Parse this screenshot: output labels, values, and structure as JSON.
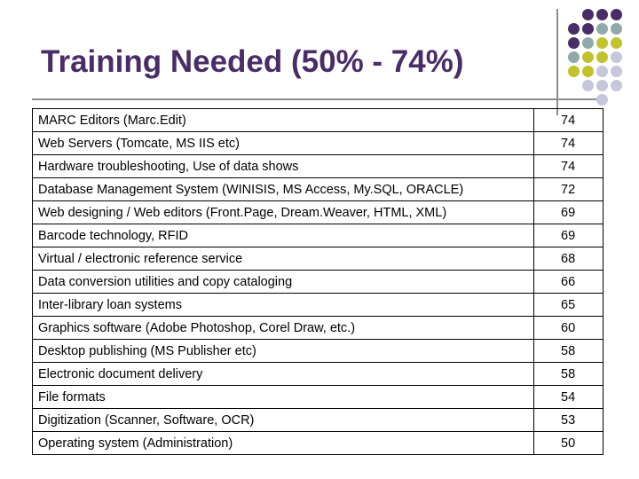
{
  "slide": {
    "title": "Training Needed (50% - 74%)",
    "colors": {
      "title": "#4a2c66",
      "dot_purple": "#4a2c66",
      "dot_teal": "#8faaa8",
      "dot_olive": "#c2c22e",
      "dot_lavender": "#c6c6dc"
    },
    "decoration_dots": [
      [
        "",
        "purple",
        "purple",
        "purple"
      ],
      [
        "purple",
        "purple",
        "teal",
        "teal"
      ],
      [
        "purple",
        "teal",
        "olive",
        "olive"
      ],
      [
        "teal",
        "olive",
        "olive",
        "lavender"
      ],
      [
        "olive",
        "olive",
        "lavender",
        "lavender"
      ],
      [
        "",
        "lavender",
        "lavender",
        "lavender"
      ],
      [
        "",
        "",
        "lavender",
        ""
      ]
    ]
  },
  "table": {
    "rows": [
      {
        "skill": "MARC Editors (Marc.Edit)",
        "value": "74"
      },
      {
        "skill": "Web Servers (Tomcate, MS IIS etc)",
        "value": "74"
      },
      {
        "skill": "Hardware troubleshooting, Use of data shows",
        "value": "74"
      },
      {
        "skill": "Database Management System (WINISIS, MS Access, My.SQL, ORACLE)",
        "value": "72"
      },
      {
        "skill": "Web designing / Web editors (Front.Page, Dream.Weaver,  HTML, XML)",
        "value": "69"
      },
      {
        "skill": "Barcode technology, RFID",
        "value": "69"
      },
      {
        "skill": "Virtual / electronic reference service",
        "value": "68"
      },
      {
        "skill": "Data conversion utilities and copy cataloging",
        "value": "66"
      },
      {
        "skill": "Inter-library loan systems",
        "value": "65"
      },
      {
        "skill": "Graphics software (Adobe Photoshop, Corel Draw, etc.)",
        "value": "60"
      },
      {
        "skill": "Desktop publishing (MS Publisher etc)",
        "value": "58"
      },
      {
        "skill": "Electronic document delivery",
        "value": "58"
      },
      {
        "skill": "File formats",
        "value": "54"
      },
      {
        "skill": "Digitization (Scanner, Software, OCR)",
        "value": "53"
      },
      {
        "skill": "Operating system (Administration)",
        "value": "50"
      }
    ]
  }
}
